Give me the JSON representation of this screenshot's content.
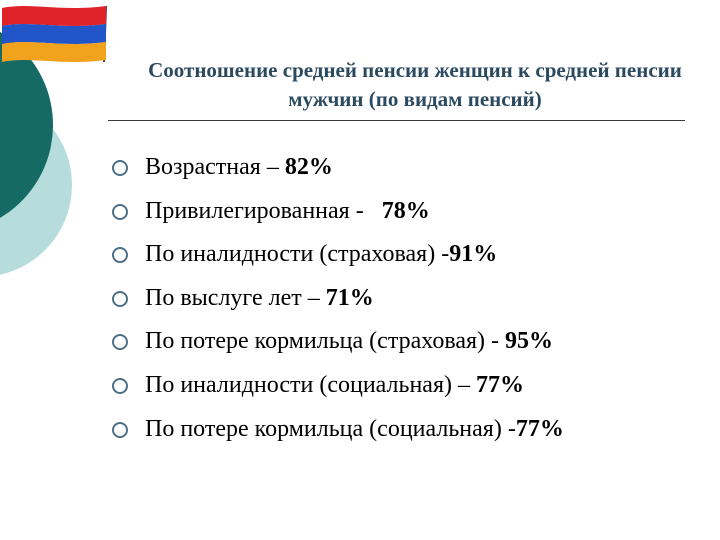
{
  "title": "Соотношение средней пенсии женщин к средней пенсии мужчин (по видам пенсий)",
  "colors": {
    "flag_red": "#e0222a",
    "flag_blue": "#2256c8",
    "flag_orange": "#f2a21c",
    "teal_dark": "#166a66",
    "teal_light": "#b7dcdc",
    "title_text": "#2b4a60",
    "bullet": "#4f6f84"
  },
  "items": [
    {
      "label": "Возрастная – ",
      "value": "82%"
    },
    {
      "label": "Привилегированная -   ",
      "value": "78%"
    },
    {
      "label": "По иналидности (страховая) -",
      "value": "91%"
    },
    {
      "label": "По выслуге лет – ",
      "value": "71%"
    },
    {
      "label": "По потере кормильца (страховая) - ",
      "value": "95%"
    },
    {
      "label": "По иналидности (социальная) – ",
      "value": "77%"
    },
    {
      "label": "По потере кормильца (социальная) -",
      "value": "77%"
    }
  ]
}
